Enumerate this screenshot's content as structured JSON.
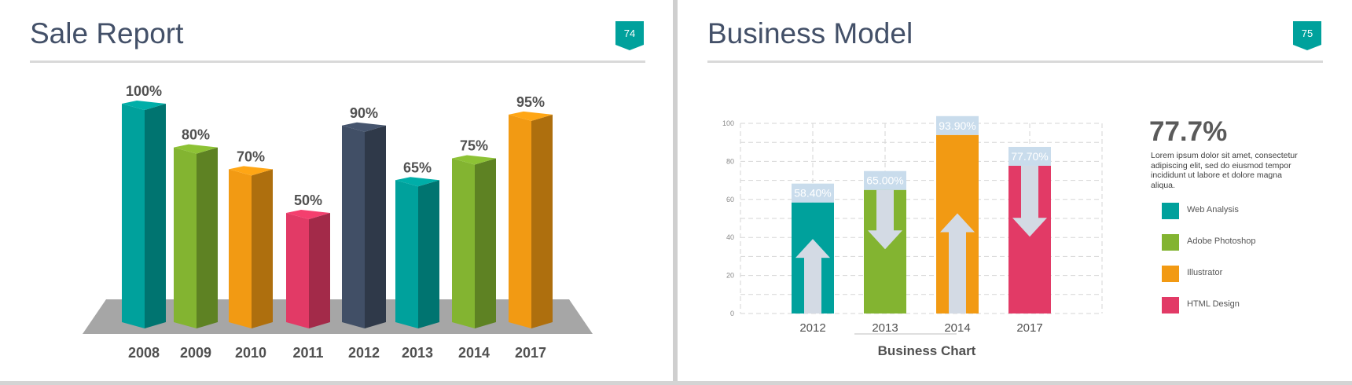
{
  "slides": [
    {
      "title": "Sale Report",
      "page_number": "74"
    },
    {
      "title": "Business Model",
      "page_number": "75",
      "stat": "77.7%",
      "description": "Lorem ipsum dolor sit amet, consectetur adipiscing elit, sed do eiusmod tempor incididunt ut labore et dolore magna aliqua."
    }
  ],
  "colors": {
    "teal": "#00A19C",
    "green": "#83B431",
    "orange": "#F29A13",
    "pink": "#E23A66",
    "navy": "#414F66",
    "title": "#435068",
    "arrow": "#D3DAE4"
  },
  "chart_data": [
    {
      "type": "bar",
      "title": "",
      "categories": [
        "2008",
        "2009",
        "2010",
        "2011",
        "2012",
        "2013",
        "2014",
        "2017"
      ],
      "values": [
        100,
        80,
        70,
        50,
        90,
        65,
        75,
        95
      ],
      "labels": [
        "100%",
        "80%",
        "70%",
        "50%",
        "90%",
        "65%",
        "75%",
        "95%"
      ],
      "colors": [
        "#00A19C",
        "#83B431",
        "#F29A13",
        "#E23A66",
        "#414F66",
        "#00A19C",
        "#83B431",
        "#F29A13"
      ],
      "ylim": [
        0,
        100
      ],
      "grid": false,
      "style": "3d"
    },
    {
      "type": "bar",
      "title": "Business Chart",
      "categories": [
        "2012",
        "2013",
        "2014",
        "2017"
      ],
      "values": [
        58.4,
        65.0,
        93.9,
        77.7
      ],
      "labels": [
        "58.40%",
        "65.00%",
        "93.90%",
        "77.70%"
      ],
      "arrows": [
        "up",
        "down",
        "up",
        "down"
      ],
      "colors": [
        "#00A19C",
        "#83B431",
        "#F29A13",
        "#E23A66"
      ],
      "yticks": [
        "0",
        "20",
        "40",
        "60",
        "80",
        "100"
      ],
      "ylim": [
        0,
        100
      ],
      "grid": true,
      "legend": [
        {
          "label": "Web Analysis",
          "color": "#00A19C"
        },
        {
          "label": "Adobe Photoshop",
          "color": "#83B431"
        },
        {
          "label": "Illustrator",
          "color": "#F29A13"
        },
        {
          "label": "HTML Design",
          "color": "#E23A66"
        }
      ],
      "legend_position": "right"
    }
  ]
}
